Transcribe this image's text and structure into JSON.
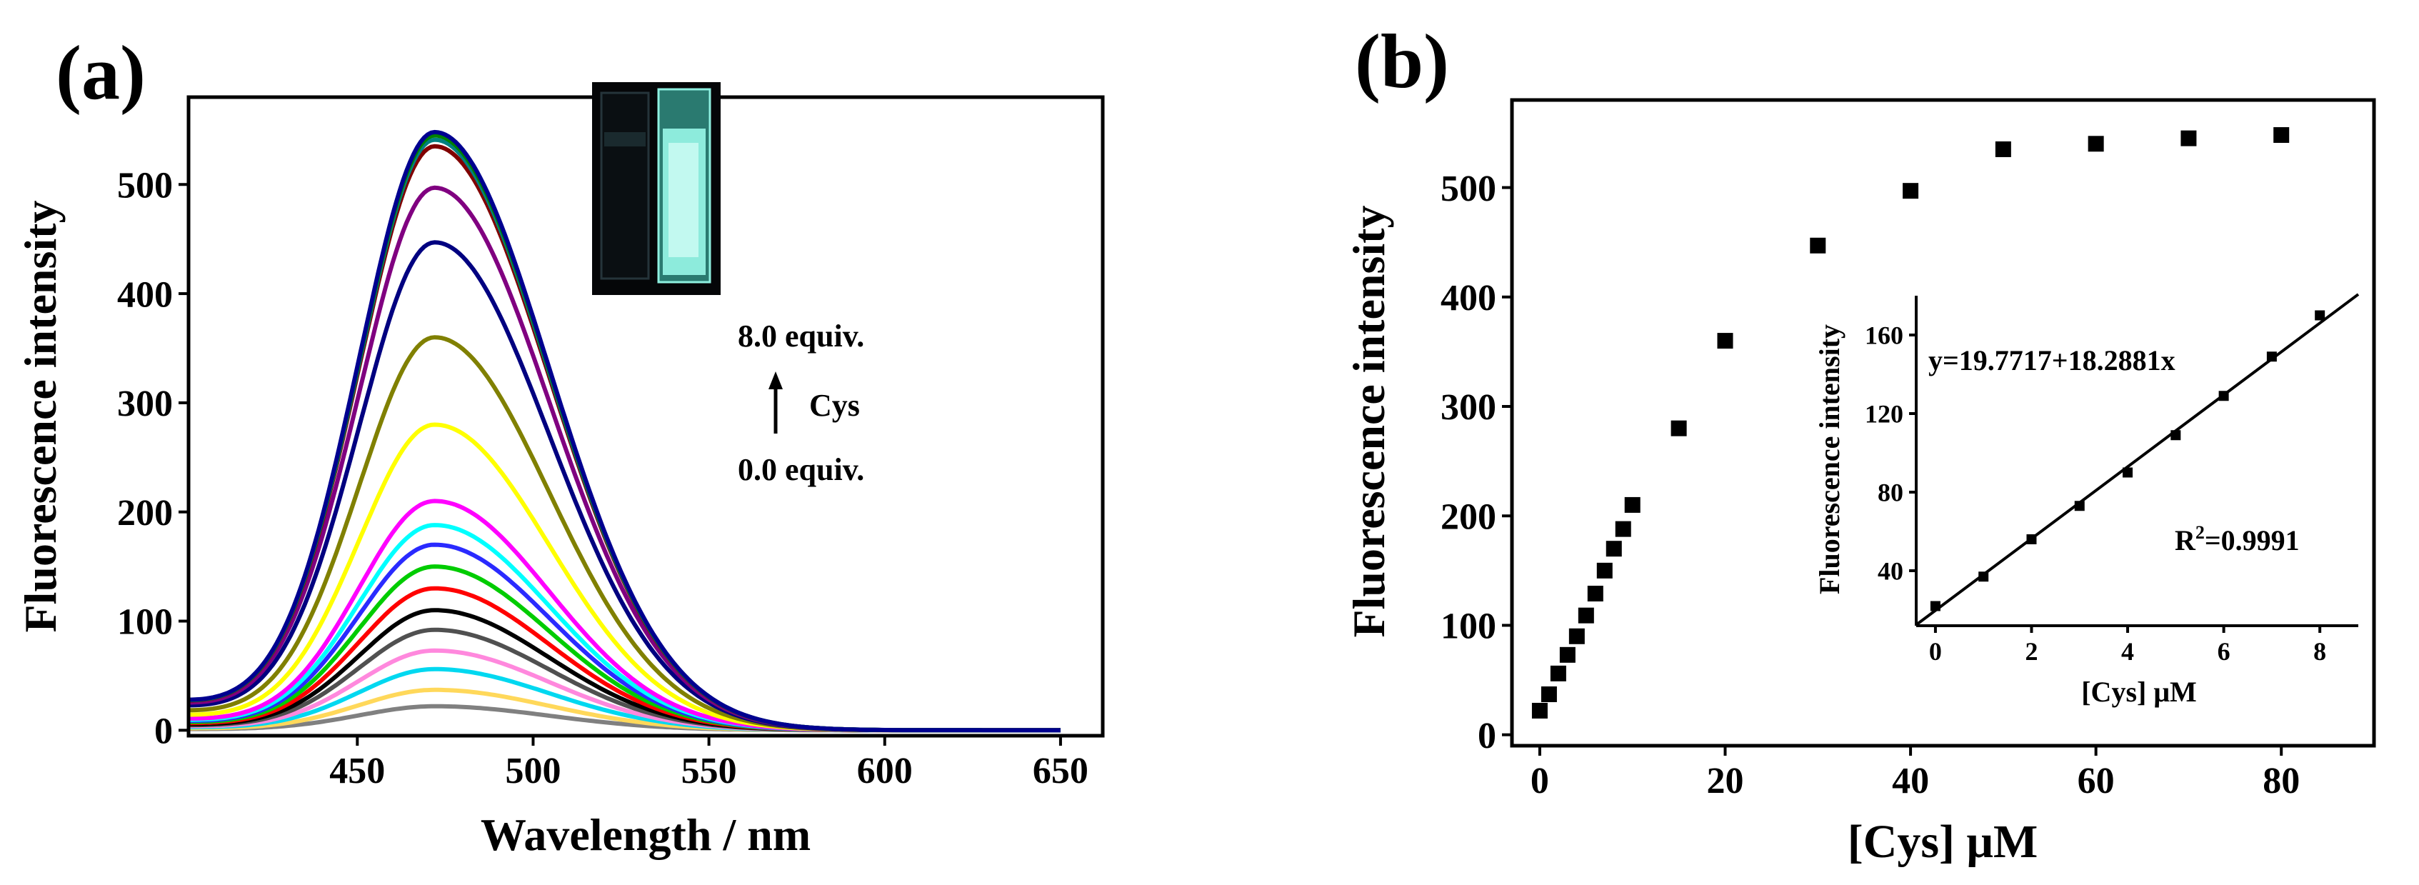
{
  "chart_data": [
    {
      "panel_label": "(a)",
      "type": "line",
      "xlabel": "Wavelength / nm",
      "ylabel": "Fluorescence intensity",
      "xlim": [
        402,
        662
      ],
      "ylim": [
        -5,
        580
      ],
      "xticks": [
        450,
        500,
        550,
        600,
        650
      ],
      "yticks": [
        0,
        100,
        200,
        300,
        400,
        500
      ],
      "grid": false,
      "legend": "none",
      "annotation": {
        "top": "8.0 equiv.",
        "middle": "Cys",
        "bottom": "0.0 equiv."
      },
      "inset_photo": "cuvette-photo",
      "peak_wavelength": 472,
      "start_wavelength": 402,
      "end_wavelength": 650,
      "series": [
        {
          "peak": 22,
          "color": "#808080"
        },
        {
          "peak": 37,
          "color": "#ffd85a"
        },
        {
          "peak": 56,
          "color": "#00d8f0"
        },
        {
          "peak": 73,
          "color": "#ff88dd"
        },
        {
          "peak": 92,
          "color": "#505050"
        },
        {
          "peak": 110,
          "color": "#000000"
        },
        {
          "peak": 130,
          "color": "#ff0000"
        },
        {
          "peak": 150,
          "color": "#00cc00"
        },
        {
          "peak": 170,
          "color": "#2a2aff"
        },
        {
          "peak": 188,
          "color": "#00ffff"
        },
        {
          "peak": 210,
          "color": "#ff00ff"
        },
        {
          "peak": 280,
          "color": "#ffff00"
        },
        {
          "peak": 360,
          "color": "#808000"
        },
        {
          "peak": 447,
          "color": "#000080"
        },
        {
          "peak": 497,
          "color": "#800080"
        },
        {
          "peak": 535,
          "color": "#800000"
        },
        {
          "peak": 541,
          "color": "#008080"
        },
        {
          "peak": 545,
          "color": "#008000"
        },
        {
          "peak": 548,
          "color": "#000090"
        }
      ]
    },
    {
      "panel_label": "(b)",
      "type": "scatter",
      "xlabel": "[Cys] μM",
      "ylabel": "Fluorescence intensity",
      "xlim": [
        -3,
        90
      ],
      "ylim": [
        -10,
        580
      ],
      "xticks": [
        0,
        20,
        40,
        60,
        80
      ],
      "yticks": [
        0,
        100,
        200,
        300,
        400,
        500
      ],
      "grid": false,
      "legend": "none",
      "points": [
        {
          "x": 0,
          "y": 22
        },
        {
          "x": 1,
          "y": 37
        },
        {
          "x": 2,
          "y": 56
        },
        {
          "x": 3,
          "y": 73
        },
        {
          "x": 4,
          "y": 90
        },
        {
          "x": 5,
          "y": 109
        },
        {
          "x": 6,
          "y": 129
        },
        {
          "x": 7,
          "y": 150
        },
        {
          "x": 8,
          "y": 170
        },
        {
          "x": 9,
          "y": 188
        },
        {
          "x": 10,
          "y": 210
        },
        {
          "x": 15,
          "y": 280
        },
        {
          "x": 20,
          "y": 360
        },
        {
          "x": 30,
          "y": 447
        },
        {
          "x": 40,
          "y": 497
        },
        {
          "x": 50,
          "y": 535
        },
        {
          "x": 60,
          "y": 540
        },
        {
          "x": 70,
          "y": 545
        },
        {
          "x": 80,
          "y": 548
        }
      ]
    },
    {
      "panel_label": "inset",
      "type": "scatter",
      "xlabel": "[Cys] μM",
      "ylabel": "Fluorescence intensity",
      "xlim": [
        -0.4,
        8.8
      ],
      "ylim": [
        12,
        180
      ],
      "xticks": [
        0,
        2,
        4,
        6,
        8
      ],
      "yticks": [
        40,
        80,
        120,
        160
      ],
      "equation": "y=19.7717+18.2881x",
      "r2_label": "R",
      "r2_sup": "2",
      "r2_value": "=0.9991",
      "fit": {
        "intercept": 19.7717,
        "slope": 18.2881
      },
      "points": [
        {
          "x": 0,
          "y": 22
        },
        {
          "x": 1,
          "y": 37
        },
        {
          "x": 2,
          "y": 56
        },
        {
          "x": 3,
          "y": 73
        },
        {
          "x": 4,
          "y": 90
        },
        {
          "x": 5,
          "y": 109
        },
        {
          "x": 6,
          "y": 129
        },
        {
          "x": 7,
          "y": 149
        },
        {
          "x": 8,
          "y": 170
        }
      ]
    }
  ]
}
